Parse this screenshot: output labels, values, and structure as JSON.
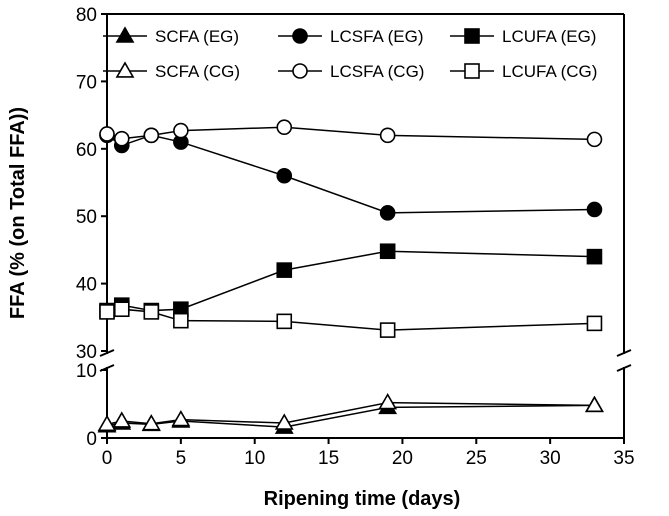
{
  "chart_data": {
    "type": "line",
    "xlabel": "Ripening time (days)",
    "ylabel": "FFA (% (on Total FFA))",
    "xlim": [
      0,
      35
    ],
    "x_ticks": [
      0,
      5,
      10,
      15,
      20,
      25,
      30,
      35
    ],
    "y_axis_break": true,
    "ylim_upper": [
      30,
      80
    ],
    "y_ticks_upper": [
      30,
      40,
      50,
      60,
      70,
      80
    ],
    "ylim_lower": [
      0,
      10
    ],
    "y_ticks_lower": [
      0,
      10
    ],
    "grid": false,
    "legend_placement": "top",
    "x": [
      0,
      1,
      3,
      5,
      12,
      19,
      33
    ],
    "series": [
      {
        "name": "SCFA (EG)",
        "marker": "triangle",
        "filled": true,
        "values": [
          1.8,
          2.2,
          2.0,
          2.5,
          1.6,
          4.5,
          4.8
        ]
      },
      {
        "name": "LCSFA (EG)",
        "marker": "circle",
        "filled": true,
        "values": [
          62.0,
          60.5,
          62.0,
          61.0,
          56.0,
          50.5,
          51.0
        ]
      },
      {
        "name": "LCUFA (EG)",
        "marker": "square",
        "filled": true,
        "values": [
          36.0,
          36.8,
          36.0,
          36.2,
          42.0,
          44.8,
          44.0
        ]
      },
      {
        "name": "SCFA (CG)",
        "marker": "triangle",
        "filled": false,
        "values": [
          2.0,
          2.5,
          2.1,
          2.7,
          2.2,
          5.2,
          4.8
        ]
      },
      {
        "name": "LCSFA (CG)",
        "marker": "circle",
        "filled": false,
        "values": [
          62.2,
          61.5,
          62.0,
          62.7,
          63.2,
          62.0,
          61.4
        ]
      },
      {
        "name": "LCUFA (CG)",
        "marker": "square",
        "filled": false,
        "values": [
          35.8,
          36.2,
          35.8,
          34.5,
          34.4,
          33.1,
          34.1
        ]
      }
    ]
  }
}
